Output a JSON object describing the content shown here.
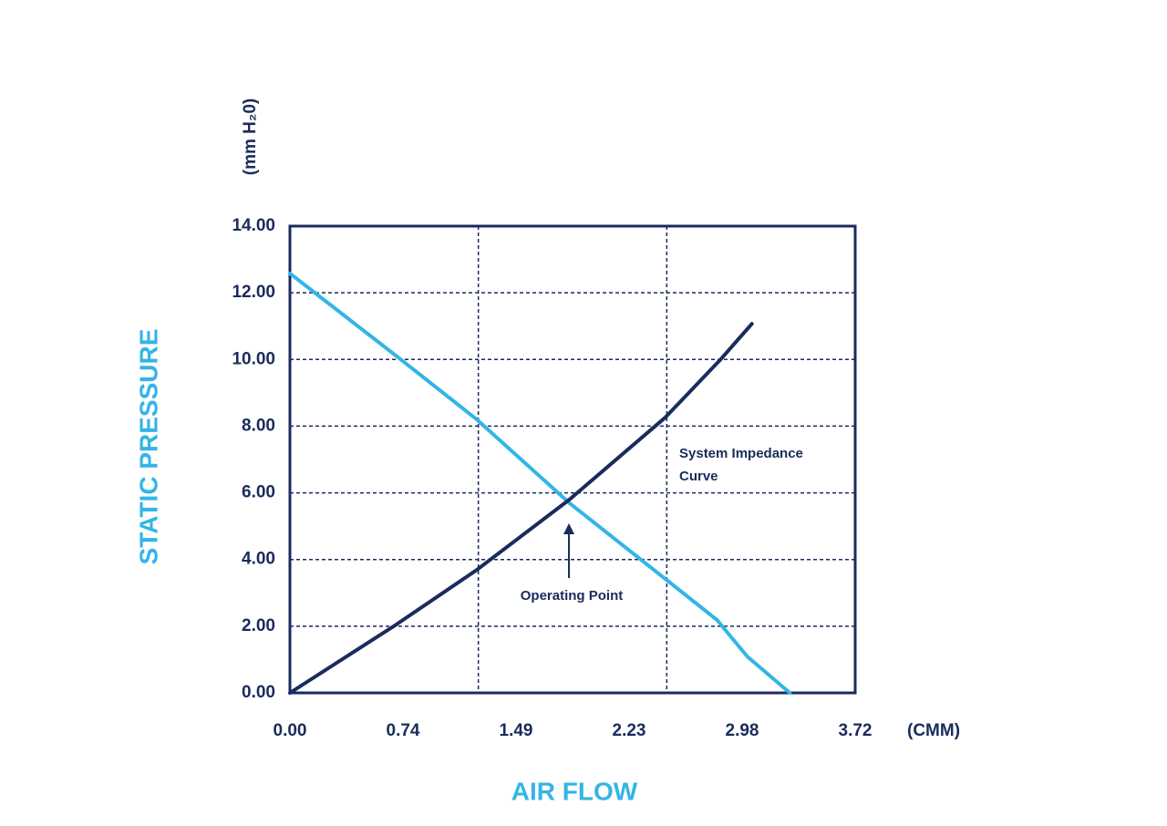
{
  "chart_data": {
    "type": "line",
    "y_label": "STATIC PRESSURE",
    "y_unit": "(mm H₂0)",
    "x_label": "AIR FLOW",
    "x_unit": "(CMM)",
    "xlim": [
      0,
      3.72
    ],
    "xticks": [
      {
        "value": 0,
        "label": "0.00"
      },
      {
        "value": 0.744,
        "label": "0.74"
      },
      {
        "value": 1.488,
        "label": "1.49"
      },
      {
        "value": 2.232,
        "label": "2.23"
      },
      {
        "value": 2.976,
        "label": "2.98"
      },
      {
        "value": 3.72,
        "label": "3.72"
      }
    ],
    "xgrid": [
      1.24,
      2.48
    ],
    "ylim": [
      0,
      14
    ],
    "yticks": [
      {
        "value": 0,
        "label": "0.00"
      },
      {
        "value": 2,
        "label": "2.00"
      },
      {
        "value": 4,
        "label": "4.00"
      },
      {
        "value": 6,
        "label": "6.00"
      },
      {
        "value": 8,
        "label": "8.00"
      },
      {
        "value": 10,
        "label": "10.00"
      },
      {
        "value": 12,
        "label": "12.00"
      },
      {
        "value": 14,
        "label": "14.00"
      }
    ],
    "grid": true,
    "series": [
      {
        "color": "#33b5e6",
        "x": [
          0,
          0.73,
          1.23,
          1.84,
          2.47,
          2.81,
          3.01,
          3.29
        ],
        "values": [
          12.58,
          10.0,
          8.2,
          5.69,
          3.42,
          2.19,
          1.09,
          0
        ]
      },
      {
        "color": "#1a2b5c",
        "x": [
          0,
          0.7,
          1.23,
          1.84,
          2.47,
          2.83,
          3.04
        ],
        "values": [
          0,
          2.05,
          3.69,
          5.8,
          8.26,
          9.98,
          11.07
        ]
      }
    ],
    "annotations": [
      {
        "lines": [
          "System Impedance",
          "Curve"
        ]
      },
      {
        "lines": [
          "Operating Point"
        ]
      }
    ]
  }
}
